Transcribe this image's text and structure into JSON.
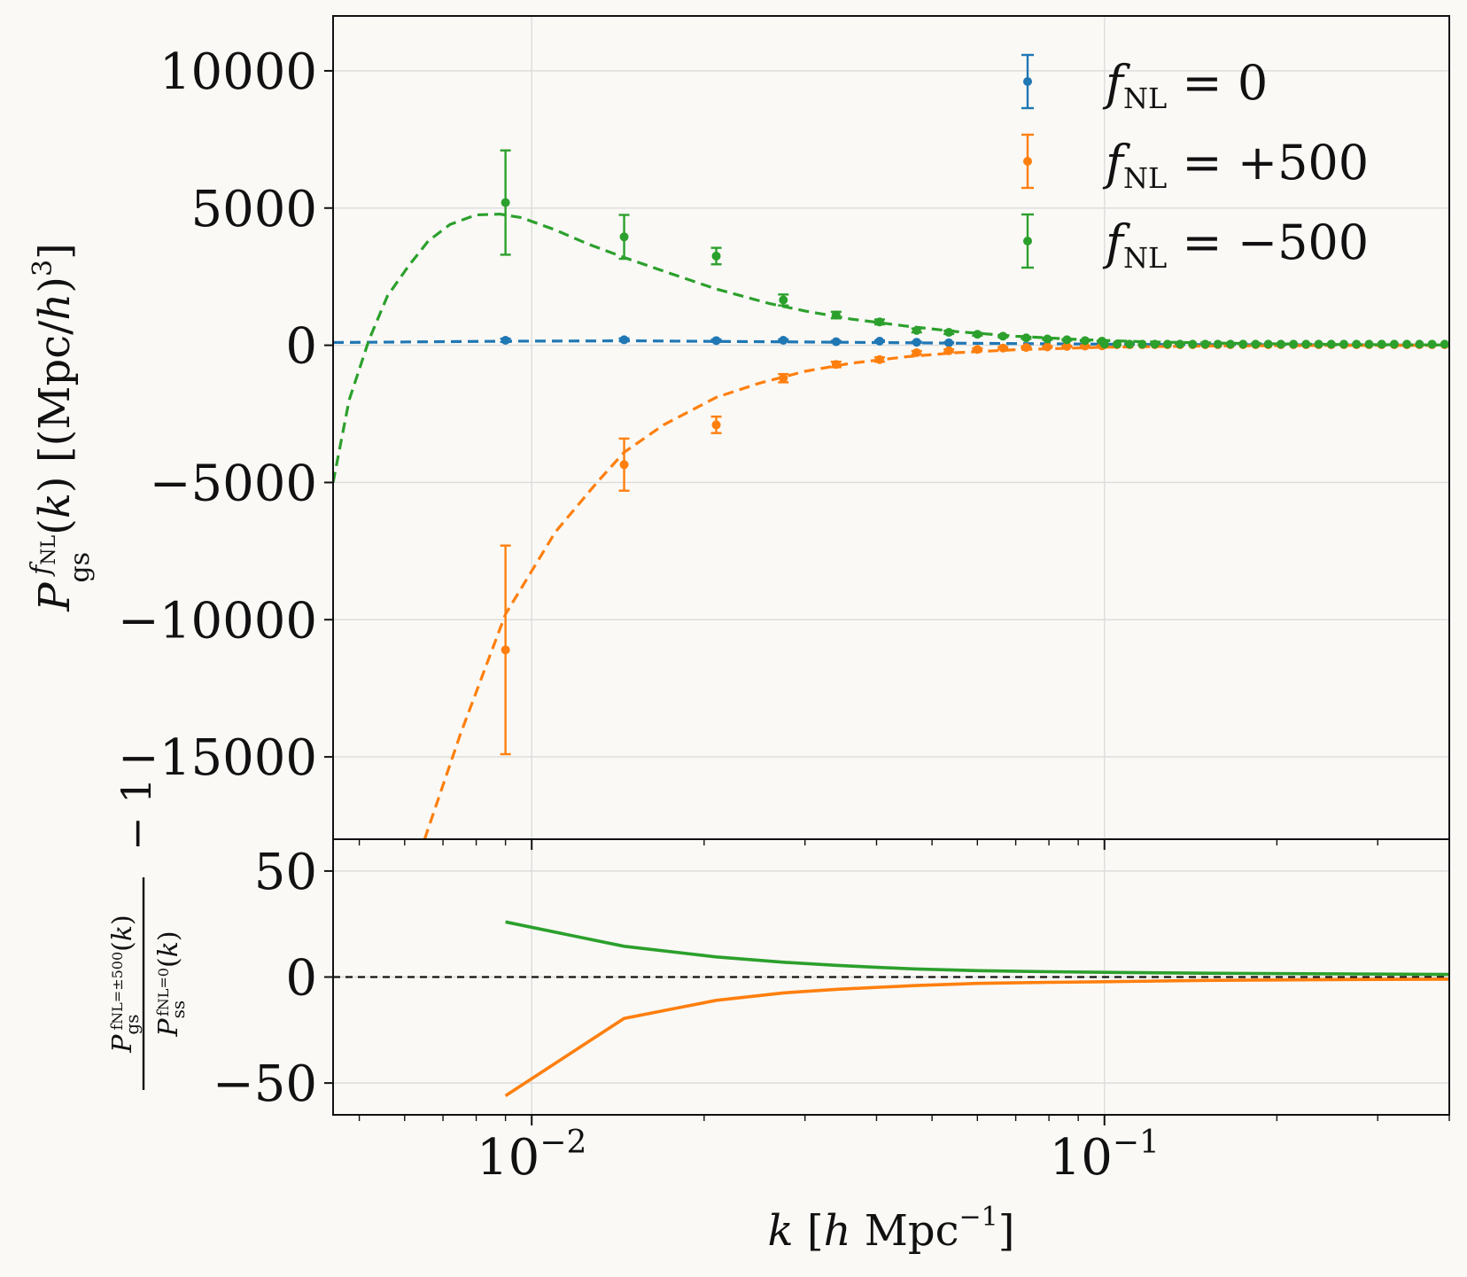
{
  "chart_data": [
    {
      "type": "scatter",
      "panel": "top",
      "ylabel": "P_gs^{f_NL}(k) [(Mpc/h)^3]",
      "xscale": "log",
      "xlim": [
        0.0045,
        0.4
      ],
      "ylim": [
        -18000,
        12000
      ],
      "yticks": [
        10000,
        5000,
        0,
        -5000,
        -10000,
        -15000
      ],
      "ytick_labels": [
        "10000",
        "5000",
        "0",
        "−5000",
        "−10000",
        "−15000"
      ],
      "grid": true,
      "legend_position": "top-right",
      "series": [
        {
          "name": "f_NL = 0",
          "color": "#1f77b4",
          "points": [
            {
              "x": 0.009,
              "y": 180,
              "err": 60
            },
            {
              "x": 0.0145,
              "y": 200,
              "err": 50
            },
            {
              "x": 0.021,
              "y": 170,
              "err": 40
            },
            {
              "x": 0.0275,
              "y": 180,
              "err": 35
            },
            {
              "x": 0.034,
              "y": 130,
              "err": 30
            },
            {
              "x": 0.0405,
              "y": 150,
              "err": 25
            },
            {
              "x": 0.047,
              "y": 110,
              "err": 20
            },
            {
              "x": 0.0535,
              "y": 90,
              "err": 15
            }
          ],
          "model": [
            [
              0.0045,
              100
            ],
            [
              0.009,
              150
            ],
            [
              0.015,
              160
            ],
            [
              0.03,
              120
            ],
            [
              0.06,
              70
            ],
            [
              0.12,
              30
            ],
            [
              0.4,
              5
            ]
          ]
        },
        {
          "name": "f_NL = +500",
          "color": "#ff7f0e",
          "points": [
            {
              "x": 0.009,
              "y": -11100,
              "err": 3800
            },
            {
              "x": 0.0145,
              "y": -4350,
              "err": 950
            },
            {
              "x": 0.021,
              "y": -2900,
              "err": 300
            },
            {
              "x": 0.0275,
              "y": -1200,
              "err": 150
            },
            {
              "x": 0.034,
              "y": -700,
              "err": 100
            },
            {
              "x": 0.0405,
              "y": -520,
              "err": 80
            },
            {
              "x": 0.047,
              "y": -270,
              "err": 60
            },
            {
              "x": 0.0535,
              "y": -200,
              "err": 50
            },
            {
              "x": 0.06,
              "y": -150,
              "err": 40
            },
            {
              "x": 0.0665,
              "y": -100,
              "err": 35
            },
            {
              "x": 0.073,
              "y": -80,
              "err": 30
            },
            {
              "x": 0.0795,
              "y": -60,
              "err": 25
            },
            {
              "x": 0.086,
              "y": -40,
              "err": 20
            },
            {
              "x": 0.0925,
              "y": -30,
              "err": 15
            },
            {
              "x": 0.099,
              "y": -20,
              "err": 12
            }
          ],
          "model": [
            [
              0.0065,
              -18000
            ],
            [
              0.0075,
              -14200
            ],
            [
              0.009,
              -9800
            ],
            [
              0.011,
              -6800
            ],
            [
              0.013,
              -5000
            ],
            [
              0.0145,
              -3900
            ],
            [
              0.017,
              -2900
            ],
            [
              0.021,
              -1900
            ],
            [
              0.025,
              -1380
            ],
            [
              0.03,
              -950
            ],
            [
              0.036,
              -660
            ],
            [
              0.045,
              -420
            ],
            [
              0.055,
              -270
            ],
            [
              0.07,
              -160
            ],
            [
              0.1,
              -70
            ],
            [
              0.15,
              -25
            ],
            [
              0.25,
              -6
            ],
            [
              0.4,
              -2
            ]
          ]
        },
        {
          "name": "f_NL = −500",
          "color": "#2ca02c",
          "points": [
            {
              "x": 0.009,
              "y": 5200,
              "err": 1900
            },
            {
              "x": 0.0145,
              "y": 3950,
              "err": 800
            },
            {
              "x": 0.021,
              "y": 3250,
              "err": 300
            },
            {
              "x": 0.0275,
              "y": 1650,
              "err": 200
            },
            {
              "x": 0.034,
              "y": 1100,
              "err": 120
            },
            {
              "x": 0.0405,
              "y": 850,
              "err": 90
            },
            {
              "x": 0.047,
              "y": 540,
              "err": 70
            },
            {
              "x": 0.0535,
              "y": 470,
              "err": 60
            },
            {
              "x": 0.06,
              "y": 400,
              "err": 50
            },
            {
              "x": 0.0665,
              "y": 330,
              "err": 40
            },
            {
              "x": 0.073,
              "y": 270,
              "err": 35
            },
            {
              "x": 0.0795,
              "y": 230,
              "err": 30
            },
            {
              "x": 0.086,
              "y": 200,
              "err": 25
            },
            {
              "x": 0.0925,
              "y": 170,
              "err": 20
            },
            {
              "x": 0.099,
              "y": 150,
              "err": 18
            }
          ],
          "model": [
            [
              0.0045,
              -5000
            ],
            [
              0.0048,
              -2000
            ],
            [
              0.0052,
              200
            ],
            [
              0.0056,
              1800
            ],
            [
              0.0061,
              2900
            ],
            [
              0.0066,
              3800
            ],
            [
              0.0072,
              4400
            ],
            [
              0.008,
              4750
            ],
            [
              0.0088,
              4780
            ],
            [
              0.0096,
              4650
            ],
            [
              0.011,
              4200
            ],
            [
              0.0125,
              3700
            ],
            [
              0.0145,
              3200
            ],
            [
              0.017,
              2700
            ],
            [
              0.021,
              2050
            ],
            [
              0.026,
              1520
            ],
            [
              0.03,
              1250
            ],
            [
              0.036,
              960
            ],
            [
              0.045,
              700
            ],
            [
              0.055,
              500
            ],
            [
              0.07,
              330
            ],
            [
              0.09,
              210
            ],
            [
              0.12,
              120
            ],
            [
              0.18,
              60
            ],
            [
              0.25,
              30
            ],
            [
              0.4,
              10
            ]
          ]
        }
      ]
    },
    {
      "type": "line",
      "panel": "bottom",
      "xlabel": "k [h Mpc^-1]",
      "ylabel": "P_gs^{f_NL=±500}(k) / P_ss^{f_NL=0}(k) − 1",
      "xscale": "log",
      "xlim": [
        0.0045,
        0.4
      ],
      "ylim": [
        -65,
        65
      ],
      "yticks": [
        50,
        0,
        -50
      ],
      "ytick_labels": [
        "50",
        "0",
        "−50"
      ],
      "xticks": [
        0.01,
        0.1
      ],
      "xtick_labels": [
        {
          "base": "10",
          "exp": "−2"
        },
        {
          "base": "10",
          "exp": "−1"
        }
      ],
      "reference_line": 0,
      "grid": true,
      "series": [
        {
          "color": "#2ca02c",
          "points": [
            [
              0.009,
              26
            ],
            [
              0.0145,
              14.5
            ],
            [
              0.021,
              9.5
            ],
            [
              0.0275,
              7
            ],
            [
              0.034,
              5.5
            ],
            [
              0.0405,
              4.5
            ],
            [
              0.047,
              3.8
            ],
            [
              0.06,
              3
            ],
            [
              0.08,
              2.5
            ],
            [
              0.1,
              2.2
            ],
            [
              0.15,
              1.8
            ],
            [
              0.25,
              1.5
            ],
            [
              0.4,
              1.2
            ]
          ]
        },
        {
          "color": "#ff7f0e",
          "points": [
            [
              0.009,
              -56
            ],
            [
              0.0145,
              -19.5
            ],
            [
              0.021,
              -11
            ],
            [
              0.0275,
              -7.5
            ],
            [
              0.034,
              -5.8
            ],
            [
              0.0405,
              -4.8
            ],
            [
              0.047,
              -4
            ],
            [
              0.06,
              -3
            ],
            [
              0.08,
              -2.5
            ],
            [
              0.1,
              -2.2
            ],
            [
              0.15,
              -1.6
            ],
            [
              0.25,
              -1.2
            ],
            [
              0.4,
              -1
            ]
          ]
        }
      ]
    }
  ]
}
